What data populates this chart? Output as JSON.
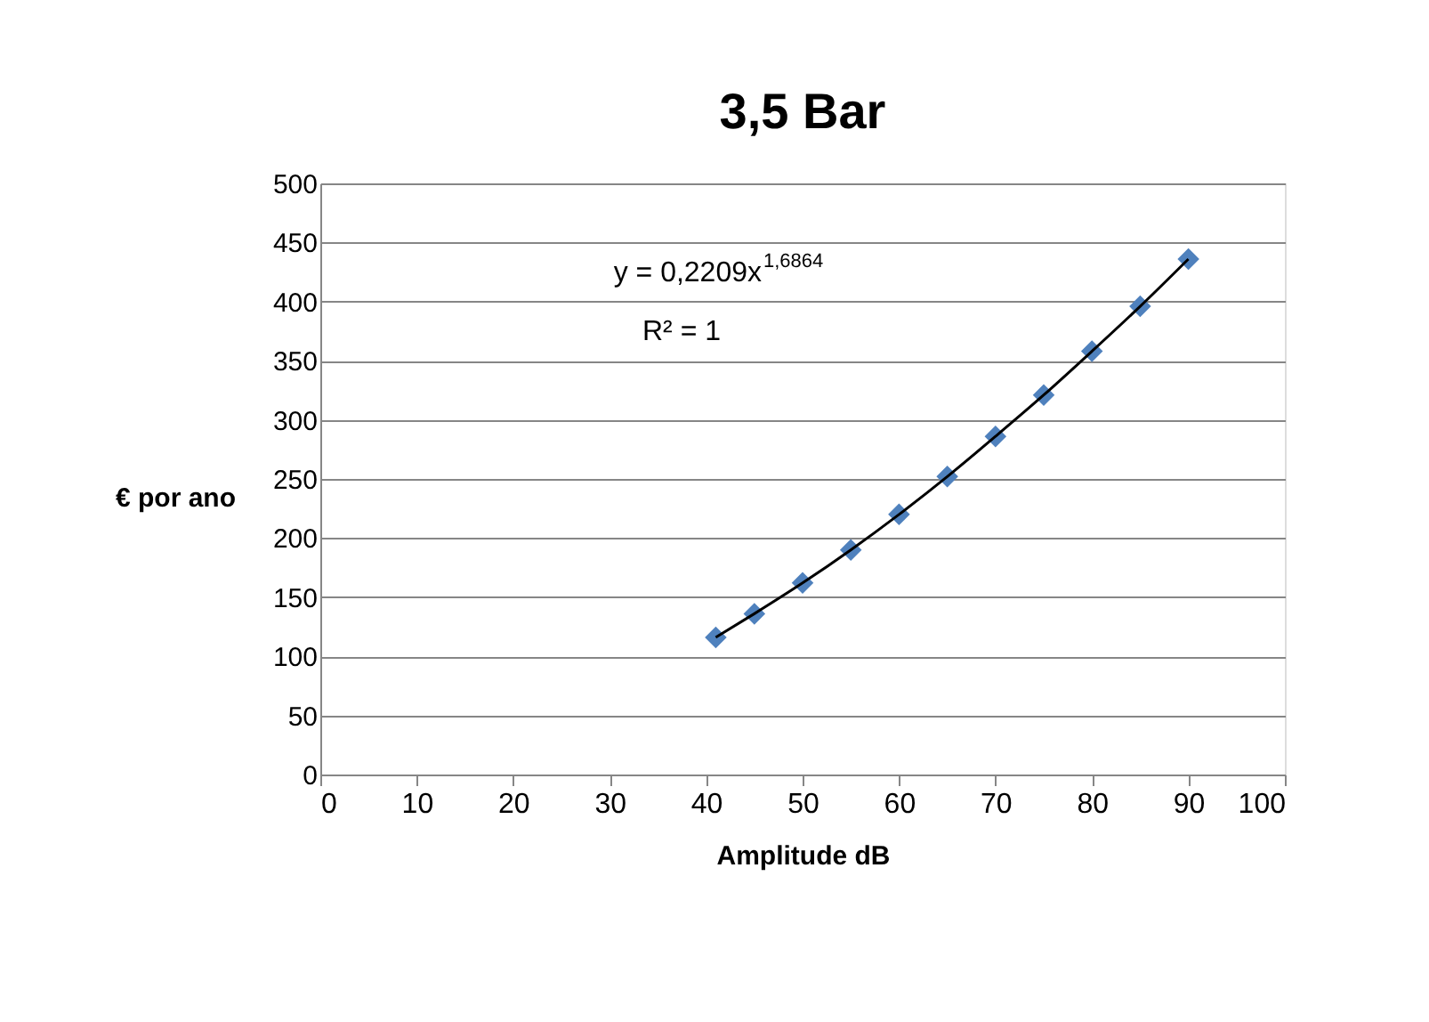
{
  "chart_data": {
    "type": "scatter",
    "title": "3,5 Bar",
    "xlabel": "Amplitude dB",
    "ylabel": "€ por ano",
    "xlim": [
      0,
      100
    ],
    "xticks": [
      0,
      10,
      20,
      30,
      40,
      50,
      60,
      70,
      80,
      90,
      100
    ],
    "ylim": [
      0,
      500
    ],
    "yticks": [
      0,
      50,
      100,
      150,
      200,
      250,
      300,
      350,
      400,
      450,
      500
    ],
    "grid": "y",
    "annotations": [
      "y = 0,2209x$^{1,6864}$",
      "R² = 1"
    ],
    "series": [
      {
        "marker": "diamond",
        "color": "#4f81bd",
        "x": [
          41,
          45,
          50,
          55,
          60,
          65,
          70,
          75,
          80,
          85,
          90
        ],
        "values": [
          116,
          136,
          162,
          190,
          220,
          252,
          286,
          321,
          358,
          396,
          436
        ]
      },
      {
        "type": "line",
        "marker": "none",
        "color": "#000000",
        "line_style": "solid",
        "x": [
          41,
          45,
          50,
          55,
          60,
          65,
          70,
          75,
          80,
          85,
          90
        ],
        "values": [
          116,
          136,
          162,
          190,
          220,
          252,
          286,
          321,
          358,
          396,
          436
        ]
      }
    ]
  }
}
